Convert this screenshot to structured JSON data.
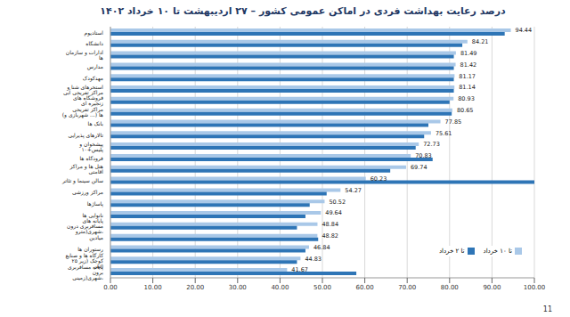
{
  "chart_data": {
    "type": "bar",
    "orientation": "horizontal",
    "title": "درصد رعایت بهداشت فردی در اماکن عمومی کشور – ۲۷ اردیبهشت تا ۱۰ خرداد ۱۴۰۲",
    "footer": "11",
    "categories": [
      "استادیوم",
      "دانشگاه",
      "ادارات و سازمان ها",
      "مدارس",
      "مهدکودک",
      "استخرهای شنا و مراکز تفریحی آبی",
      "فروشگاه های زنجیره ای",
      "مراکز تفریحی (شهربازی و ...) ها",
      "بانک ها",
      "تالارهای پذیرایی",
      "پیشخوان و پلیس+۱۰",
      "فرودگاه ها",
      "هتل ها و مراکز اقامتی",
      "سالن سینما و تئاتر",
      "مراکز ورزشی",
      "پاساژها",
      "نانوایی ها",
      "پایانه های مسافربری درون شهری(مترو،",
      "میادین",
      "رستوران ها",
      "کارگاه ها و صنایع کوچک (زیر ۲۵ نفر)",
      "پایانه مسافربری برون شهری(زمینی،"
    ],
    "series": [
      {
        "name": "تا ۱۰ خرداد",
        "color": "#a9c8e8",
        "data_labels": true,
        "values": [
          94.44,
          84.21,
          81.49,
          81.42,
          81.17,
          81.14,
          80.93,
          80.65,
          77.85,
          75.61,
          72.73,
          70.83,
          69.74,
          60.23,
          54.27,
          50.52,
          49.64,
          48.84,
          48.82,
          46.84,
          44.83,
          41.67
        ]
      },
      {
        "name": "تا ۲ خرداد",
        "color": "#2e75b6",
        "data_labels": false,
        "values": [
          93,
          83,
          81,
          81,
          81,
          81,
          80,
          80.5,
          75,
          74,
          72,
          76,
          66,
          100,
          51,
          47,
          46,
          44,
          49,
          46,
          44,
          58
        ]
      }
    ],
    "xlim": [
      0,
      100
    ],
    "xticks": [
      {
        "value": 0,
        "label": "0.00"
      },
      {
        "value": 10,
        "label": "10.00"
      },
      {
        "value": 20,
        "label": "20.00"
      },
      {
        "value": 30,
        "label": "30.00"
      },
      {
        "value": 40,
        "label": "40.00"
      },
      {
        "value": 50,
        "label": "50.00"
      },
      {
        "value": 60,
        "label": "60.00"
      },
      {
        "value": 70,
        "label": "70.00"
      },
      {
        "value": 80,
        "label": "80.00"
      },
      {
        "value": 90,
        "label": "90.00"
      },
      {
        "value": 100,
        "label": "100.00"
      }
    ],
    "grid": true,
    "legend": "lower right"
  }
}
